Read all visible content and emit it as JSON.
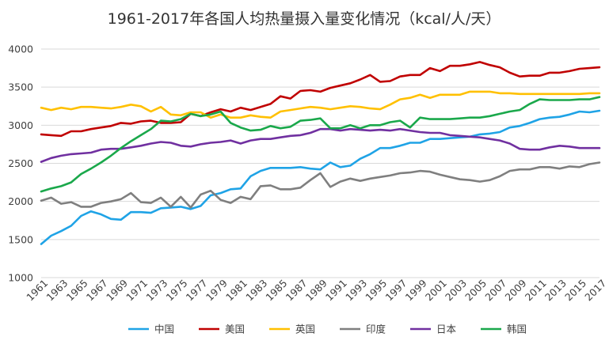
{
  "chart_data": {
    "type": "line",
    "title": "1961-2017年各国人均热量摄入量变化情况（kcal/人/天）",
    "xlabel": "",
    "ylabel": "",
    "ylim": [
      1000,
      4000
    ],
    "yticks": [
      1000,
      1500,
      2000,
      2500,
      3000,
      3500,
      4000
    ],
    "x": [
      1961,
      1962,
      1963,
      1964,
      1965,
      1966,
      1967,
      1968,
      1969,
      1970,
      1971,
      1972,
      1973,
      1974,
      1975,
      1976,
      1977,
      1978,
      1979,
      1980,
      1981,
      1982,
      1983,
      1984,
      1985,
      1986,
      1987,
      1988,
      1989,
      1990,
      1991,
      1992,
      1993,
      1994,
      1995,
      1996,
      1997,
      1998,
      1999,
      2000,
      2001,
      2002,
      2003,
      2004,
      2005,
      2006,
      2007,
      2008,
      2009,
      2010,
      2011,
      2012,
      2013,
      2014,
      2015,
      2016,
      2017
    ],
    "xtick_labels": [
      "1961",
      "1963",
      "1965",
      "1967",
      "1969",
      "1971",
      "1973",
      "1975",
      "1977",
      "1979",
      "1981",
      "1983",
      "1985",
      "1987",
      "1989",
      "1991",
      "1993",
      "1995",
      "1997",
      "1999",
      "2001",
      "2003",
      "2005",
      "2007",
      "2009",
      "2011",
      "2013",
      "2015",
      "2017"
    ],
    "legend_position": "bottom",
    "grid": true,
    "series": [
      {
        "name": "中国",
        "color": "#1fa3e6",
        "values": [
          1440,
          1550,
          1610,
          1680,
          1810,
          1870,
          1830,
          1770,
          1760,
          1860,
          1860,
          1850,
          1910,
          1920,
          1930,
          1900,
          1940,
          2080,
          2110,
          2160,
          2170,
          2330,
          2400,
          2440,
          2440,
          2440,
          2450,
          2430,
          2420,
          2510,
          2450,
          2470,
          2560,
          2620,
          2700,
          2700,
          2730,
          2770,
          2770,
          2820,
          2820,
          2830,
          2840,
          2850,
          2880,
          2890,
          2910,
          2970,
          2990,
          3030,
          3080,
          3100,
          3110,
          3140,
          3180,
          3170,
          3190
        ]
      },
      {
        "name": "美国",
        "color": "#c00000",
        "values": [
          2880,
          2870,
          2860,
          2920,
          2920,
          2950,
          2970,
          2990,
          3030,
          3020,
          3050,
          3060,
          3030,
          3030,
          3040,
          3150,
          3120,
          3170,
          3210,
          3180,
          3230,
          3200,
          3240,
          3280,
          3380,
          3350,
          3450,
          3460,
          3440,
          3490,
          3520,
          3550,
          3600,
          3660,
          3570,
          3580,
          3640,
          3660,
          3660,
          3750,
          3710,
          3780,
          3780,
          3800,
          3830,
          3790,
          3760,
          3690,
          3640,
          3650,
          3650,
          3690,
          3690,
          3710,
          3740,
          3750,
          3760
        ]
      },
      {
        "name": "英国",
        "color": "#ffc000",
        "values": [
          3230,
          3200,
          3230,
          3210,
          3240,
          3240,
          3230,
          3220,
          3240,
          3270,
          3250,
          3180,
          3240,
          3140,
          3130,
          3170,
          3170,
          3100,
          3140,
          3100,
          3100,
          3130,
          3110,
          3100,
          3180,
          3200,
          3220,
          3240,
          3230,
          3210,
          3230,
          3250,
          3240,
          3220,
          3210,
          3270,
          3340,
          3360,
          3400,
          3360,
          3400,
          3400,
          3400,
          3440,
          3440,
          3440,
          3420,
          3420,
          3410,
          3410,
          3410,
          3410,
          3410,
          3410,
          3410,
          3420,
          3420
        ]
      },
      {
        "name": "印度",
        "color": "#7f7f7f",
        "values": [
          2010,
          2050,
          1970,
          1990,
          1930,
          1930,
          1980,
          2000,
          2030,
          2110,
          1990,
          1980,
          2050,
          1930,
          2060,
          1920,
          2090,
          2140,
          2020,
          1980,
          2060,
          2030,
          2200,
          2210,
          2160,
          2160,
          2180,
          2280,
          2370,
          2190,
          2260,
          2300,
          2270,
          2300,
          2320,
          2340,
          2370,
          2380,
          2400,
          2390,
          2350,
          2320,
          2290,
          2280,
          2260,
          2280,
          2330,
          2400,
          2420,
          2420,
          2450,
          2450,
          2430,
          2460,
          2450,
          2490,
          2510
        ]
      },
      {
        "name": "日本",
        "color": "#7030a0",
        "values": [
          2520,
          2570,
          2600,
          2620,
          2630,
          2640,
          2680,
          2690,
          2690,
          2710,
          2730,
          2760,
          2780,
          2770,
          2730,
          2720,
          2750,
          2770,
          2780,
          2800,
          2760,
          2800,
          2820,
          2820,
          2840,
          2860,
          2870,
          2900,
          2950,
          2950,
          2930,
          2950,
          2940,
          2930,
          2940,
          2930,
          2950,
          2930,
          2910,
          2900,
          2900,
          2870,
          2860,
          2850,
          2840,
          2820,
          2800,
          2760,
          2690,
          2680,
          2680,
          2710,
          2730,
          2720,
          2700,
          2700,
          2700
        ]
      },
      {
        "name": "韩国",
        "color": "#1aa84b",
        "values": [
          2130,
          2170,
          2200,
          2250,
          2360,
          2430,
          2510,
          2600,
          2700,
          2790,
          2870,
          2950,
          3060,
          3050,
          3080,
          3150,
          3120,
          3140,
          3180,
          3030,
          2970,
          2930,
          2940,
          2990,
          2960,
          2980,
          3060,
          3070,
          3090,
          2960,
          2960,
          3000,
          2960,
          3000,
          3000,
          3040,
          3060,
          2970,
          3100,
          3080,
          3080,
          3080,
          3090,
          3100,
          3100,
          3120,
          3150,
          3180,
          3200,
          3280,
          3340,
          3330,
          3330,
          3330,
          3340,
          3340,
          3370
        ]
      }
    ]
  }
}
